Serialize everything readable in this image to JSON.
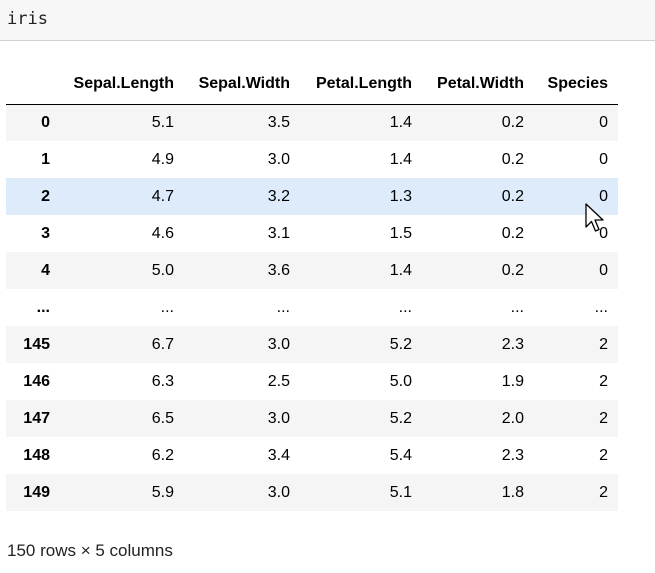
{
  "input_cell": {
    "code": "iris"
  },
  "table": {
    "columns": [
      "",
      "Sepal.Length",
      "Sepal.Width",
      "Petal.Length",
      "Petal.Width",
      "Species"
    ],
    "rows": [
      {
        "index": "0",
        "values": [
          "5.1",
          "3.5",
          "1.4",
          "0.2",
          "0"
        ]
      },
      {
        "index": "1",
        "values": [
          "4.9",
          "3.0",
          "1.4",
          "0.2",
          "0"
        ]
      },
      {
        "index": "2",
        "values": [
          "4.7",
          "3.2",
          "1.3",
          "0.2",
          "0"
        ]
      },
      {
        "index": "3",
        "values": [
          "4.6",
          "3.1",
          "1.5",
          "0.2",
          "0"
        ]
      },
      {
        "index": "4",
        "values": [
          "5.0",
          "3.6",
          "1.4",
          "0.2",
          "0"
        ]
      },
      {
        "index": "...",
        "values": [
          "...",
          "...",
          "...",
          "...",
          "..."
        ]
      },
      {
        "index": "145",
        "values": [
          "6.7",
          "3.0",
          "5.2",
          "2.3",
          "2"
        ]
      },
      {
        "index": "146",
        "values": [
          "6.3",
          "2.5",
          "5.0",
          "1.9",
          "2"
        ]
      },
      {
        "index": "147",
        "values": [
          "6.5",
          "3.0",
          "5.2",
          "2.0",
          "2"
        ]
      },
      {
        "index": "148",
        "values": [
          "6.2",
          "3.4",
          "5.4",
          "2.3",
          "2"
        ]
      },
      {
        "index": "149",
        "values": [
          "5.9",
          "3.0",
          "5.1",
          "1.8",
          "2"
        ]
      }
    ],
    "highlighted_row": 2,
    "highlight_color": "#ddebfa"
  },
  "caption": "150 rows × 5 columns",
  "cursor_icon": "mouse-pointer-icon"
}
